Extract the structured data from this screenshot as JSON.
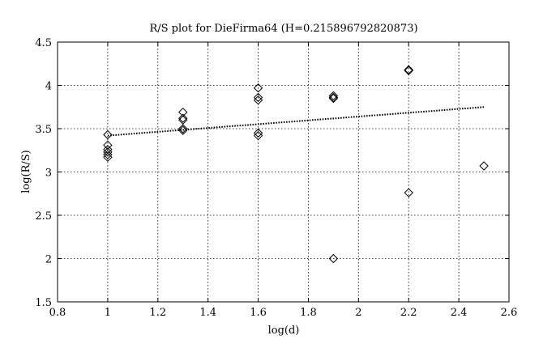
{
  "chart_data": {
    "type": "scatter",
    "title": "R/S plot for DieFirma64 (H=0.215896792820873)",
    "xlabel": "log(d)",
    "ylabel": "log(R/S)",
    "xlim": [
      0.8,
      2.6
    ],
    "ylim": [
      1.5,
      4.5
    ],
    "xticks": [
      "0.8",
      "1",
      "1.2",
      "1.4",
      "1.6",
      "1.8",
      "2",
      "2.2",
      "2.4",
      "2.6"
    ],
    "yticks": [
      "1.5",
      "2",
      "2.5",
      "3",
      "3.5",
      "4",
      "4.5"
    ],
    "grid": true,
    "series": [
      {
        "marker": "diamond",
        "color": "#000000",
        "points": [
          [
            1.0,
            3.43
          ],
          [
            1.0,
            3.31
          ],
          [
            1.0,
            3.26
          ],
          [
            1.0,
            3.23
          ],
          [
            1.0,
            3.2
          ],
          [
            1.0,
            3.17
          ],
          [
            1.3,
            3.69
          ],
          [
            1.3,
            3.62
          ],
          [
            1.3,
            3.6
          ],
          [
            1.3,
            3.5
          ],
          [
            1.3,
            3.48
          ],
          [
            1.6,
            3.97
          ],
          [
            1.6,
            3.86
          ],
          [
            1.6,
            3.83
          ],
          [
            1.6,
            3.45
          ],
          [
            1.6,
            3.42
          ],
          [
            1.9,
            3.88
          ],
          [
            1.9,
            3.86
          ],
          [
            1.9,
            3.85
          ],
          [
            1.9,
            2.0
          ],
          [
            2.2,
            4.18
          ],
          [
            2.2,
            4.17
          ],
          [
            2.2,
            2.76
          ],
          [
            2.5,
            3.07
          ]
        ]
      },
      {
        "style": "dotted-line",
        "color": "#000000",
        "points": [
          [
            1.0,
            3.42
          ],
          [
            2.5,
            3.75
          ]
        ]
      }
    ]
  }
}
